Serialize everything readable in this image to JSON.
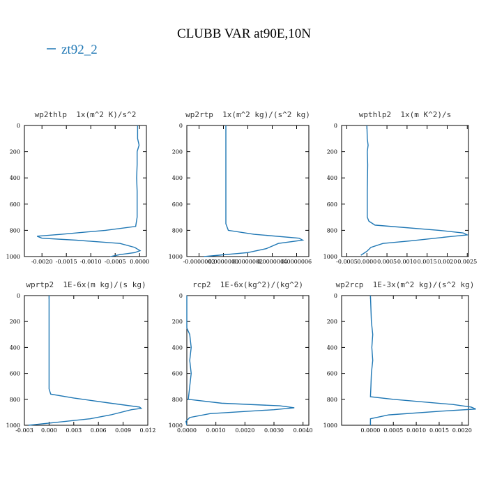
{
  "title": "CLUBB VAR at90E,10N",
  "chart_data": [
    {
      "type": "line",
      "title": "wp2thlp  1x(m^2 K)/s^2",
      "y": [
        0,
        100,
        150,
        200,
        300,
        400,
        500,
        600,
        700,
        770,
        800,
        830,
        845,
        860,
        875,
        900,
        930,
        955,
        970,
        985,
        1000
      ],
      "series": [
        {
          "name": "zt92_2",
          "color": "#1f77b4",
          "values": [
            -4e-05,
            -4e-05,
            -1e-05,
            -5e-05,
            -5e-05,
            -6e-05,
            -5e-05,
            -5e-05,
            -5e-05,
            -8e-05,
            -0.0007,
            -0.0016,
            -0.0021,
            -0.002,
            -0.0013,
            -0.0004,
            -0.0001,
            1e-05,
            -0.0001,
            -0.0004,
            -0.0006
          ]
        }
      ],
      "xlim": [
        -0.00236,
        0.00014
      ],
      "xticks": [
        {
          "value": -0.002,
          "label": "-0.0020"
        },
        {
          "value": -0.0015,
          "label": "-0.0015"
        },
        {
          "value": -0.001,
          "label": "-0.0010"
        },
        {
          "value": -0.0005,
          "label": "-0.0005"
        },
        {
          "value": 0,
          "label": "0.0000"
        }
      ],
      "ylim": [
        1000,
        0
      ],
      "yticks": [
        0,
        200,
        400,
        600,
        800,
        1000
      ]
    },
    {
      "type": "line",
      "title": "wp2rtp  1x(m^2 kg)/(s^2 kg)",
      "y": [
        0,
        200,
        400,
        600,
        750,
        800,
        830,
        860,
        875,
        900,
        940,
        970,
        1000
      ],
      "series": [
        {
          "name": "zt92_2",
          "color": "#1f77b4",
          "values": [
            2e-08,
            2e-08,
            2e-08,
            2e-08,
            2e-08,
            4e-08,
            2.5e-07,
            6.2e-07,
            6.5e-07,
            4.5e-07,
            3.5e-07,
            2e-07,
            -1.6e-07
          ]
        }
      ],
      "xlim": [
        -3e-07,
        7e-07
      ],
      "xticks": [
        {
          "value": -2e-07,
          "label": "-0.0000002"
        },
        {
          "value": 0,
          "label": "0.0000000"
        },
        {
          "value": 2e-07,
          "label": "0.0000002"
        },
        {
          "value": 4e-07,
          "label": "0.0000004"
        },
        {
          "value": 6e-07,
          "label": "0.0000006"
        }
      ],
      "ylim": [
        1000,
        0
      ],
      "yticks": [
        0,
        200,
        400,
        600,
        800,
        1000
      ]
    },
    {
      "type": "line",
      "title": "wpthlp2  1x(m K^2)/s",
      "y": [
        0,
        100,
        150,
        200,
        300,
        500,
        700,
        730,
        760,
        800,
        820,
        835,
        850,
        880,
        900,
        930,
        960,
        990
      ],
      "series": [
        {
          "name": "zt92_2",
          "color": "#1f77b4",
          "values": [
            0,
            1e-05,
            3e-05,
            1e-05,
            2e-05,
            1e-05,
            1e-05,
            5e-05,
            0.0002,
            0.0018,
            0.0024,
            0.0025,
            0.002,
            0.0011,
            0.0004,
            0.0001,
            0,
            -0.00015
          ]
        }
      ],
      "xlim": [
        -0.00063,
        0.00253
      ],
      "xticks": [
        {
          "value": -0.0005,
          "label": "-0.0005"
        },
        {
          "value": 0,
          "label": "0.0000"
        },
        {
          "value": 0.0005,
          "label": "0.0005"
        },
        {
          "value": 0.001,
          "label": "0.0010"
        },
        {
          "value": 0.0015,
          "label": "0.0015"
        },
        {
          "value": 0.002,
          "label": "0.0020"
        },
        {
          "value": 0.0025,
          "label": "0.0025"
        }
      ],
      "ylim": [
        1000,
        0
      ],
      "yticks": [
        0,
        200,
        400,
        600,
        800,
        1000
      ]
    },
    {
      "type": "line",
      "title": "wprtp2  1E-6x(m kg)/(s kg)",
      "y": [
        0,
        200,
        400,
        600,
        720,
        760,
        790,
        830,
        860,
        870,
        880,
        920,
        950,
        980,
        1000
      ],
      "series": [
        {
          "name": "zt92_2",
          "color": "#1f77b4",
          "values": [
            0,
            0,
            0,
            0,
            0,
            0.0002,
            0.003,
            0.0075,
            0.011,
            0.0112,
            0.01,
            0.0075,
            0.005,
            0.0005,
            -0.0025
          ]
        }
      ],
      "xlim": [
        -0.003,
        0.012
      ],
      "xticks": [
        {
          "value": -0.003,
          "label": "-0.003"
        },
        {
          "value": 0,
          "label": "0.000"
        },
        {
          "value": 0.003,
          "label": "0.003"
        },
        {
          "value": 0.006,
          "label": "0.006"
        },
        {
          "value": 0.009,
          "label": "0.009"
        },
        {
          "value": 0.012,
          "label": "0.012"
        }
      ],
      "ylim": [
        1000,
        0
      ],
      "yticks": [
        0,
        200,
        400,
        600,
        800,
        1000
      ]
    },
    {
      "type": "line",
      "title": "rcp2  1E-6x(kg^2)/(kg^2)",
      "y": [
        0,
        250,
        300,
        400,
        500,
        600,
        700,
        800,
        830,
        850,
        865,
        880,
        910,
        940,
        970,
        1000
      ],
      "series": [
        {
          "name": "zt92_2",
          "color": "#1f77b4",
          "values": [
            0,
            0,
            0.0001,
            0.00015,
            0.0001,
            0.00015,
            0.0001,
            5e-05,
            0.0012,
            0.0032,
            0.0037,
            0.003,
            0.0008,
            0.0001,
            -3e-05,
            0
          ]
        }
      ],
      "xlim": [
        0,
        0.0042
      ],
      "xticks": [
        {
          "value": 0,
          "label": "0.0000"
        },
        {
          "value": 0.001,
          "label": "0.0010"
        },
        {
          "value": 0.002,
          "label": "0.0020"
        },
        {
          "value": 0.003,
          "label": "0.0030"
        },
        {
          "value": 0.004,
          "label": "0.0040"
        }
      ],
      "ylim": [
        1000,
        0
      ],
      "yticks": [
        0,
        200,
        400,
        600,
        800,
        1000
      ]
    },
    {
      "type": "line",
      "title": "wp2rcp  1E-3x(m^2 kg)/(s^2 kg)",
      "y": [
        0,
        200,
        300,
        400,
        500,
        600,
        700,
        780,
        800,
        840,
        860,
        875,
        890,
        920,
        950,
        1000
      ],
      "series": [
        {
          "name": "zt92_2",
          "color": "#1f77b4",
          "values": [
            0,
            2e-05,
            5e-05,
            3e-05,
            5e-05,
            2e-05,
            1e-05,
            0,
            0.0005,
            0.0018,
            0.0022,
            0.0023,
            0.0016,
            0.0004,
            0,
            0
          ]
        }
      ],
      "xlim": [
        -0.00063,
        0.00214
      ],
      "xticks": [
        {
          "value": 0,
          "label": "0.0000"
        },
        {
          "value": 0.0005,
          "label": "0.0005"
        },
        {
          "value": 0.001,
          "label": "0.0010"
        },
        {
          "value": 0.0015,
          "label": "0.0015"
        },
        {
          "value": 0.002,
          "label": "0.0020"
        }
      ],
      "ylim": [
        1000,
        0
      ],
      "yticks": [
        0,
        200,
        400,
        600,
        800,
        1000
      ]
    }
  ]
}
